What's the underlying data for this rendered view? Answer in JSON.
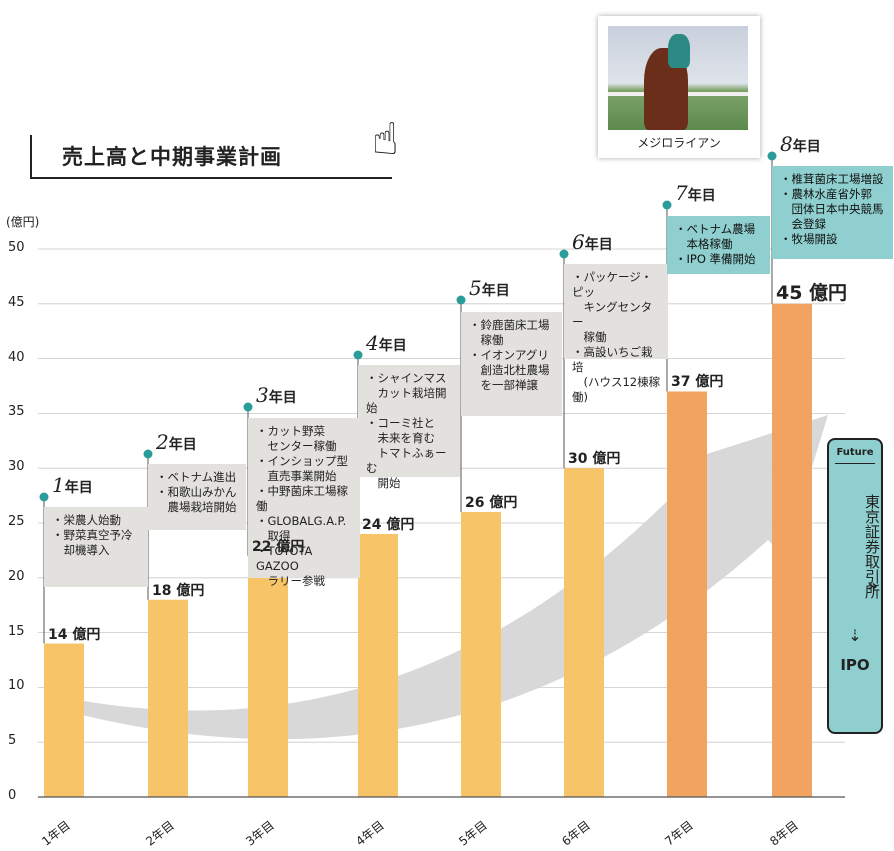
{
  "header": {
    "title": "売上高と中期事業計画",
    "pointer_icon": "pointing-hand-icon"
  },
  "photo": {
    "caption": "メジロライアン",
    "icon": "racehorse-photo"
  },
  "future": {
    "tag": "Future",
    "text": "東京証券取引所",
    "arrow": "⇣",
    "ipo": "IPO",
    "chevron": "»"
  },
  "colors": {
    "bar_light": "#f8c468",
    "bar_dark": "#f3a360",
    "note_gray": "#e3e1dd",
    "note_teal": "#8fcfcf",
    "dot": "#2a9d9a",
    "arrow": "#d6d6d6"
  },
  "chart_data": {
    "type": "bar",
    "unit": "(億円)",
    "ylim": [
      0,
      50
    ],
    "yticks": [
      "0",
      "5",
      "10",
      "15",
      "20",
      "25",
      "30",
      "35",
      "40",
      "45",
      "50"
    ],
    "grid": true,
    "categories": [
      "1年目",
      "2年目",
      "3年目",
      "4年目",
      "5年目",
      "6年目",
      "7年目",
      "8年目"
    ],
    "values": [
      14,
      18,
      22,
      24,
      26,
      30,
      37,
      45
    ],
    "value_labels": [
      "14 億円",
      "18 億円",
      "22 億円",
      "24 億円",
      "26 億円",
      "30 億円",
      "37 億円",
      "45 億円"
    ],
    "year_labels": [
      {
        "num": "1",
        "suffix": "年目"
      },
      {
        "num": "2",
        "suffix": "年目"
      },
      {
        "num": "3",
        "suffix": "年目"
      },
      {
        "num": "4",
        "suffix": "年目"
      },
      {
        "num": "5",
        "suffix": "年目"
      },
      {
        "num": "6",
        "suffix": "年目"
      },
      {
        "num": "7",
        "suffix": "年目"
      },
      {
        "num": "8",
        "suffix": "年目"
      }
    ],
    "notes": [
      "・栄農人始動\n・野菜真空予冷\n　却機導入",
      "・ベトナム進出\n・和歌山みかん\n　農場栽培開始",
      "・カット野菜\n　センター稼働\n・インショップ型\n　直売事業開始\n・中野菌床工場稼働\n・GLOBALG.A.P.\n　取得\n・TOYOTA GAZOO\n　ラリー参戦",
      "・シャインマス\n　カット栽培開始\n・コーミ社と\n　未来を育む\n　トマトふぁーむ\n　開始",
      "・鈴鹿菌床工場\n　稼働\n・イオンアグリ\n　創造北杜農場\n　を一部禅譲",
      "・パッケージ・ピッ\n　キングセンター\n　稼働\n・高設いちご栽培\n　(ハウス12棟稼働)",
      "・ベトナム農場\n　本格稼働\n・IPO 準備開始",
      "・椎茸菌床工場増設\n・農林水産省外郭\n　団体日本中央競馬\n　会登録\n・牧場開設"
    ]
  }
}
